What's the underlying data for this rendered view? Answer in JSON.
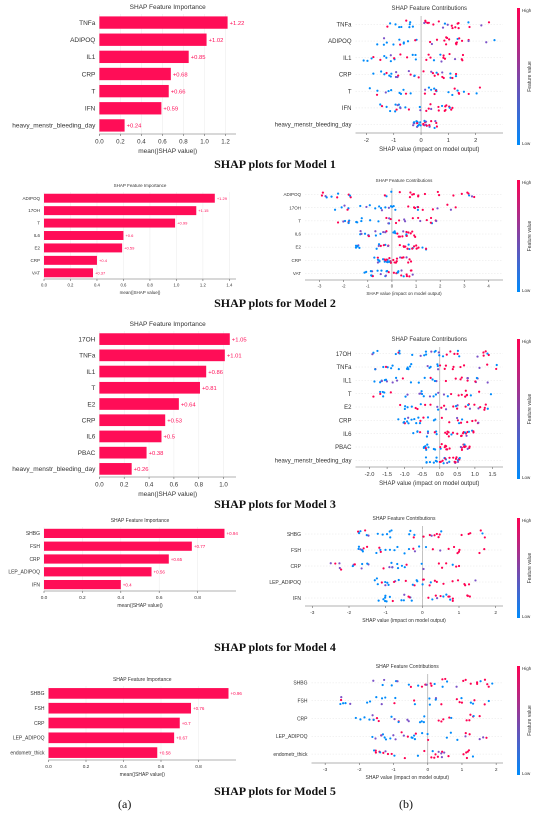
{
  "colors": {
    "bar": "#ff0d57",
    "high": "#ff0052",
    "low": "#008bfb",
    "mid": "#7c52c8",
    "text": "#333333",
    "axis": "#666666"
  },
  "panel_labels": {
    "left": "(a)",
    "right": "(b)"
  },
  "models": [
    {
      "caption": "SHAP plots for Model 1",
      "importance": {
        "type": "bar",
        "title": "SHAP Feature Importance",
        "xlabel": "mean(|SHAP value|)",
        "xlim": [
          0,
          1.3
        ],
        "xticks": [
          "0.0",
          "0.2",
          "0.4",
          "0.6",
          "0.8",
          "1.0",
          "1.2"
        ],
        "categories": [
          "TNFa",
          "ADIPOQ",
          "IL1",
          "CRP",
          "T",
          "IFN",
          "heavy_menstr_bleeding_day"
        ],
        "values": [
          1.22,
          1.02,
          0.85,
          0.68,
          0.66,
          0.59,
          0.24
        ],
        "labels": [
          "+1.22",
          "+1.02",
          "+0.85",
          "+0.68",
          "+0.66",
          "+0.59",
          "+0.24"
        ]
      },
      "contributions": {
        "type": "scatter",
        "title": "SHAP Feature Contributions",
        "xlabel": "SHAP value (impact on model output)",
        "xlim": [
          -2.4,
          3.0
        ],
        "xticks": [
          -2,
          -1,
          0,
          1,
          2
        ],
        "colorbar_label": "Feature value",
        "colorbar_high": "High",
        "colorbar_low": "Low",
        "features": [
          "TNFa",
          "ADIPOQ",
          "IL1",
          "CRP",
          "T",
          "IFN",
          "heavy_menstr_bleeding_day"
        ],
        "ranges": [
          [
            -1.6,
            2.6
          ],
          [
            -1.8,
            2.8
          ],
          [
            -2.2,
            1.6
          ],
          [
            -1.8,
            1.4
          ],
          [
            -1.9,
            2.2
          ],
          [
            -1.5,
            1.2
          ],
          [
            -0.3,
            0.6
          ]
        ]
      }
    },
    {
      "caption": "SHAP plots for Model 2",
      "importance": {
        "type": "bar",
        "title": "SHAP Feature Importance",
        "xlabel": "mean(|SHAP value|)",
        "xlim": [
          0,
          1.45
        ],
        "xticks": [
          "0.0",
          "0.2",
          "0.4",
          "0.6",
          "0.8",
          "1.0",
          "1.2",
          "1.4"
        ],
        "categories": [
          "ADIPOQ",
          "17OH",
          "T",
          "IL6",
          "E2",
          "CRP",
          "VAT"
        ],
        "values": [
          1.29,
          1.15,
          0.99,
          0.6,
          0.59,
          0.4,
          0.37
        ],
        "labels": [
          "+1.29",
          "+1.15",
          "+0.99",
          "+0.6",
          "+0.59",
          "+0.4",
          "+0.37"
        ]
      },
      "contributions": {
        "type": "scatter",
        "title": "SHAP Feature Contributions",
        "xlabel": "SHAP value (impact on model output)",
        "xlim": [
          -3.6,
          4.6
        ],
        "xticks": [
          -3,
          -2,
          -1,
          0,
          1,
          2,
          3,
          4
        ],
        "colorbar_label": "Feature value",
        "colorbar_high": "High",
        "colorbar_low": "Low",
        "features": [
          "ADIPOQ",
          "17OH",
          "T",
          "IL6",
          "E2",
          "CRP",
          "VAT"
        ],
        "ranges": [
          [
            -3.0,
            3.6
          ],
          [
            -2.4,
            2.8
          ],
          [
            -2.6,
            2.0
          ],
          [
            -1.4,
            1.0
          ],
          [
            -1.8,
            1.6
          ],
          [
            -0.8,
            0.8
          ],
          [
            -1.2,
            1.0
          ]
        ]
      }
    },
    {
      "caption": "SHAP plots for Model 3",
      "importance": {
        "type": "bar",
        "title": "SHAP Feature Importance",
        "xlabel": "mean(|SHAP value|)",
        "xlim": [
          0,
          1.1
        ],
        "xticks": [
          "0.0",
          "0.2",
          "0.4",
          "0.6",
          "0.8",
          "1.0"
        ],
        "categories": [
          "17OH",
          "TNFa",
          "IL1",
          "T",
          "E2",
          "CRP",
          "IL6",
          "PBAC",
          "heavy_menstr_bleeding_day"
        ],
        "values": [
          1.05,
          1.01,
          0.86,
          0.81,
          0.64,
          0.53,
          0.5,
          0.38,
          0.26
        ],
        "labels": [
          "+1.05",
          "+1.01",
          "+0.86",
          "+0.81",
          "+0.64",
          "+0.53",
          "+0.5",
          "+0.38",
          "+0.26"
        ]
      },
      "contributions": {
        "type": "scatter",
        "title": "SHAP Feature Contributions",
        "xlabel": "SHAP value (impact on model output)",
        "xlim": [
          -2.4,
          1.8
        ],
        "xticks": [
          "-2.0",
          "-1.5",
          "-1.0",
          "-0.5",
          "0.0",
          "0.5",
          "1.0",
          "1.5"
        ],
        "colorbar_label": "Feature value",
        "colorbar_high": "High",
        "colorbar_low": "Low",
        "features": [
          "17OH",
          "TNFa",
          "IL1",
          "T",
          "E2",
          "CRP",
          "IL6",
          "PBAC",
          "heavy_menstr_bleeding_day"
        ],
        "ranges": [
          [
            -2.2,
            1.5
          ],
          [
            -1.9,
            1.7
          ],
          [
            -2.1,
            1.4
          ],
          [
            -1.9,
            1.6
          ],
          [
            -1.3,
            1.4
          ],
          [
            -1.2,
            1.2
          ],
          [
            -0.8,
            1.0
          ],
          [
            -0.5,
            0.9
          ],
          [
            -0.4,
            0.6
          ]
        ]
      }
    },
    {
      "caption": "SHAP plots for Model 4",
      "importance": {
        "type": "bar",
        "title": "SHAP Feature Importance",
        "xlabel": "mean(|SHAP value|)",
        "xlim": [
          0,
          1.0
        ],
        "xticks": [
          "0.0",
          "0.2",
          "0.4",
          "0.6",
          "0.8"
        ],
        "categories": [
          "SHBG",
          "FSH",
          "CRP",
          "LEP_ADIPOQ",
          "IFN"
        ],
        "values": [
          0.94,
          0.77,
          0.65,
          0.56,
          0.4
        ],
        "labels": [
          "+0.94",
          "+0.77",
          "+0.65",
          "+0.56",
          "+0.4"
        ]
      },
      "contributions": {
        "type": "scatter",
        "title": "SHAP Feature Contributions",
        "xlabel": "SHAP value (impact on model output)",
        "xlim": [
          -3.2,
          2.2
        ],
        "xticks": [
          -3,
          -2,
          -1,
          0,
          1,
          2
        ],
        "colorbar_label": "Feature value",
        "colorbar_high": "High",
        "colorbar_low": "Low",
        "features": [
          "SHBG",
          "FSH",
          "CRP",
          "LEP_ADIPOQ",
          "IFN"
        ],
        "ranges": [
          [
            -1.8,
            1.8
          ],
          [
            -2.4,
            1.8
          ],
          [
            -2.6,
            1.2
          ],
          [
            -1.4,
            1.6
          ],
          [
            -1.2,
            1.4
          ]
        ]
      }
    },
    {
      "caption": "SHAP plots for Model 5",
      "importance": {
        "type": "bar",
        "title": "SHAP Feature Importance",
        "xlabel": "mean(|SHAP value|)",
        "xlim": [
          0,
          1.0
        ],
        "xticks": [
          "0.0",
          "0.2",
          "0.4",
          "0.6",
          "0.8"
        ],
        "categories": [
          "SHBG",
          "FSH",
          "CRP",
          "LEP_ADIPOQ",
          "endometr_thick"
        ],
        "values": [
          0.96,
          0.76,
          0.7,
          0.67,
          0.58
        ],
        "labels": [
          "+0.96",
          "+0.76",
          "+0.7",
          "+0.67",
          "+0.58"
        ]
      },
      "contributions": {
        "type": "scatter",
        "title": "SHAP Feature Contributions",
        "xlabel": "SHAP value (impact on model output)",
        "xlim": [
          -3.4,
          2.2
        ],
        "xticks": [
          -3,
          -2,
          -1,
          0,
          1,
          2
        ],
        "colorbar_label": "Feature value",
        "colorbar_high": "High",
        "colorbar_low": "Low",
        "features": [
          "SHBG",
          "FSH",
          "CRP",
          "LEP_ADIPOQ",
          "endometr_thick"
        ],
        "ranges": [
          [
            -1.6,
            1.9
          ],
          [
            -2.8,
            1.8
          ],
          [
            -2.2,
            1.6
          ],
          [
            -1.8,
            1.8
          ],
          [
            -1.6,
            1.4
          ]
        ]
      }
    }
  ]
}
